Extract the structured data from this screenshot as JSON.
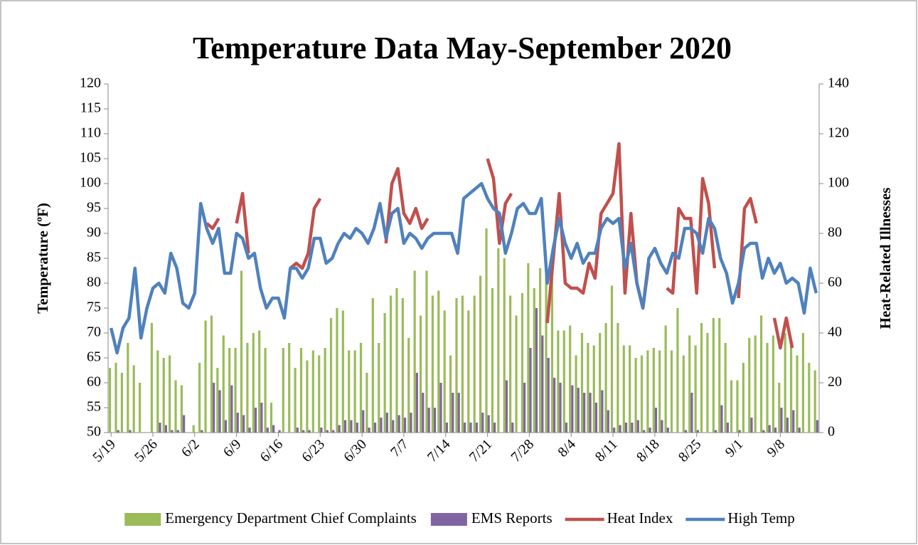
{
  "chart_data": {
    "type": "combo",
    "title": "Temperature Data May-September 2020",
    "y_label": "Temperature (ºF)",
    "y2_label": "Heat-Related Illnesses",
    "categories": [
      "5/19",
      null,
      null,
      null,
      null,
      null,
      null,
      "5/26",
      null,
      null,
      null,
      null,
      null,
      null,
      "6/2",
      null,
      null,
      null,
      null,
      null,
      null,
      "6/9",
      null,
      null,
      null,
      null,
      null,
      null,
      "6/16",
      null,
      null,
      null,
      null,
      null,
      null,
      "6/23",
      null,
      null,
      null,
      null,
      null,
      null,
      "6/30",
      null,
      null,
      null,
      null,
      null,
      null,
      "7/7",
      null,
      null,
      null,
      null,
      null,
      null,
      "7/14",
      null,
      null,
      null,
      null,
      null,
      null,
      "7/21",
      null,
      null,
      null,
      null,
      null,
      null,
      "7/28",
      null,
      null,
      null,
      null,
      null,
      null,
      "8/4",
      null,
      null,
      null,
      null,
      null,
      null,
      "8/11",
      null,
      null,
      null,
      null,
      null,
      null,
      "8/18",
      null,
      null,
      null,
      null,
      null,
      null,
      "8/25",
      null,
      null,
      null,
      null,
      null,
      null,
      "9/1",
      null,
      null,
      null,
      null,
      null,
      null,
      "9/8",
      null,
      null,
      null,
      null,
      null,
      null
    ],
    "ylim": [
      50,
      120
    ],
    "yticks": [
      50,
      55,
      60,
      65,
      70,
      75,
      80,
      85,
      90,
      95,
      100,
      105,
      110,
      115,
      120
    ],
    "y2lim": [
      0,
      140
    ],
    "y2ticks": [
      0,
      20,
      40,
      60,
      80,
      100,
      120,
      140
    ],
    "grid": false,
    "legend": "bottom",
    "series": [
      {
        "name": "Emergency Department Chief Complaints",
        "type": "bar",
        "axis": "y2",
        "color": "#9bbb59",
        "values": [
          26,
          28,
          24,
          36,
          27,
          20,
          0,
          44,
          33,
          30,
          31,
          21,
          19,
          0,
          3,
          28,
          45,
          47,
          26,
          39,
          34,
          34,
          65,
          36,
          40,
          41,
          34,
          12,
          0,
          34,
          36,
          26,
          34,
          29,
          33,
          31,
          34,
          46,
          50,
          49,
          33,
          33,
          36,
          24,
          54,
          36,
          48,
          55,
          58,
          54,
          38,
          65,
          47,
          65,
          55,
          57,
          49,
          31,
          54,
          55,
          49,
          55,
          63,
          82,
          58,
          74,
          70,
          55,
          47,
          56,
          68,
          58,
          66,
          64,
          67,
          41,
          41,
          43,
          31,
          40,
          36,
          35,
          40,
          44,
          59,
          44,
          35,
          35,
          30,
          31,
          33,
          34,
          33,
          43,
          33,
          50,
          31,
          39,
          35,
          44,
          40,
          46,
          46,
          36,
          21,
          21,
          28,
          38,
          39,
          47,
          36,
          39,
          20,
          40,
          35,
          31,
          40,
          28,
          25
        ]
      },
      {
        "name": "EMS Reports",
        "type": "bar",
        "axis": "y2",
        "color": "#8064a2",
        "values": [
          0,
          1,
          0,
          1,
          0,
          0,
          0,
          0,
          4,
          3,
          1,
          1,
          7,
          0,
          0,
          1,
          0,
          20,
          17,
          5,
          19,
          8,
          7,
          2,
          10,
          12,
          2,
          3,
          1,
          0,
          0,
          2,
          1,
          1,
          0,
          2,
          1,
          1,
          3,
          5,
          5,
          4,
          9,
          2,
          4,
          6,
          8,
          5,
          7,
          6,
          8,
          24,
          16,
          10,
          10,
          20,
          4,
          16,
          16,
          4,
          4,
          4,
          8,
          7,
          4,
          0,
          21,
          4,
          0,
          20,
          34,
          50,
          39,
          30,
          22,
          20,
          4,
          19,
          18,
          16,
          16,
          12,
          17,
          9,
          2,
          3,
          4,
          4,
          5,
          1,
          2,
          10,
          5,
          2,
          0,
          0,
          1,
          16,
          1,
          0,
          0,
          1,
          11,
          4,
          0,
          1,
          0,
          6,
          0,
          1,
          3,
          2,
          10,
          6,
          9,
          2,
          0,
          0,
          5
        ]
      },
      {
        "name": "Heat Index",
        "type": "line",
        "color": "#c0504d",
        "values": [
          null,
          null,
          null,
          null,
          null,
          null,
          null,
          null,
          null,
          null,
          null,
          null,
          null,
          null,
          null,
          null,
          92,
          91,
          93,
          null,
          null,
          92,
          98,
          86,
          null,
          null,
          null,
          null,
          null,
          null,
          83,
          84,
          83,
          86,
          95,
          97,
          null,
          null,
          null,
          null,
          null,
          null,
          null,
          null,
          null,
          null,
          88,
          100,
          103,
          94,
          92,
          95,
          91,
          93,
          null,
          null,
          null,
          null,
          null,
          null,
          null,
          null,
          null,
          105,
          101,
          88,
          96,
          98,
          null,
          null,
          null,
          null,
          null,
          72,
          85,
          98,
          80,
          79,
          79,
          78,
          84,
          81,
          94,
          96,
          98,
          108,
          78,
          94,
          80,
          75,
          84,
          null,
          null,
          79,
          78,
          95,
          93,
          93,
          78,
          101,
          96,
          83,
          null,
          null,
          null,
          77,
          95,
          97,
          92,
          null,
          null,
          73,
          67,
          73,
          67,
          null,
          null,
          null,
          null
        ]
      },
      {
        "name": "High Temp",
        "type": "line",
        "color": "#4f81bd",
        "values": [
          71,
          66,
          71,
          73,
          83,
          69,
          75,
          79,
          80,
          78,
          86,
          83,
          76,
          75,
          78,
          96,
          91,
          88,
          91,
          82,
          82,
          90,
          89,
          85,
          86,
          79,
          75,
          77,
          77,
          73,
          83,
          83,
          81,
          83,
          89,
          89,
          84,
          85,
          88,
          90,
          89,
          91,
          90,
          88,
          91,
          96,
          89,
          94,
          95,
          88,
          90,
          89,
          87,
          89,
          90,
          90,
          90,
          90,
          86,
          97,
          98,
          99,
          100,
          97,
          95,
          94,
          86,
          90,
          95,
          96,
          94,
          94,
          97,
          80,
          87,
          93,
          88,
          85,
          88,
          84,
          86,
          86,
          91,
          93,
          92,
          93,
          83,
          88,
          80,
          75,
          85,
          87,
          84,
          82,
          86,
          85,
          91,
          91,
          90,
          86,
          93,
          91,
          85,
          82,
          76,
          80,
          87,
          88,
          88,
          81,
          85,
          82,
          84,
          80,
          81,
          80,
          74,
          83,
          78
        ]
      }
    ]
  }
}
